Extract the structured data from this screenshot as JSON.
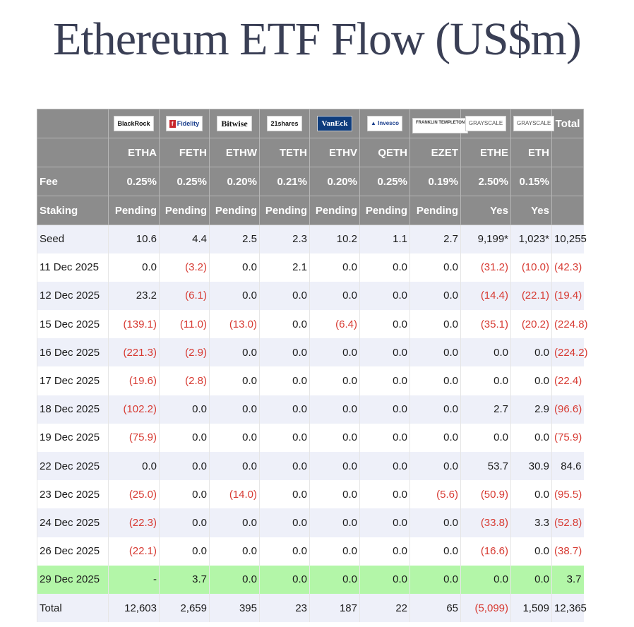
{
  "title": "Ethereum ETF Flow (US$m)",
  "issuers": [
    "BlackRock",
    "Fidelity",
    "Bitwise",
    "21shares",
    "VanEck",
    "Invesco",
    "FRANKLIN TEMPLETON",
    "GRAYSCALE",
    "GRAYSCALE"
  ],
  "total_header": "Total",
  "tickers": [
    "ETHA",
    "FETH",
    "ETHW",
    "TETH",
    "ETHV",
    "QETH",
    "EZET",
    "ETHE",
    "ETH"
  ],
  "fee_label": "Fee",
  "fees": [
    "0.25%",
    "0.25%",
    "0.20%",
    "0.21%",
    "0.20%",
    "0.25%",
    "0.19%",
    "2.50%",
    "0.15%"
  ],
  "staking_label": "Staking",
  "staking": [
    "Pending",
    "Pending",
    "Pending",
    "Pending",
    "Pending",
    "Pending",
    "Pending",
    "Yes",
    "Yes"
  ],
  "rows": [
    {
      "date": "Seed",
      "v": [
        "10.6",
        "4.4",
        "2.5",
        "2.3",
        "10.2",
        "1.1",
        "2.7",
        "9,199*",
        "1,023*",
        "10,255"
      ]
    },
    {
      "date": "11 Dec 2025",
      "v": [
        "0.0",
        "(3.2)",
        "0.0",
        "2.1",
        "0.0",
        "0.0",
        "0.0",
        "(31.2)",
        "(10.0)",
        "(42.3)"
      ]
    },
    {
      "date": "12 Dec 2025",
      "v": [
        "23.2",
        "(6.1)",
        "0.0",
        "0.0",
        "0.0",
        "0.0",
        "0.0",
        "(14.4)",
        "(22.1)",
        "(19.4)"
      ]
    },
    {
      "date": "15 Dec 2025",
      "v": [
        "(139.1)",
        "(11.0)",
        "(13.0)",
        "0.0",
        "(6.4)",
        "0.0",
        "0.0",
        "(35.1)",
        "(20.2)",
        "(224.8)"
      ]
    },
    {
      "date": "16 Dec 2025",
      "v": [
        "(221.3)",
        "(2.9)",
        "0.0",
        "0.0",
        "0.0",
        "0.0",
        "0.0",
        "0.0",
        "0.0",
        "(224.2)"
      ]
    },
    {
      "date": "17 Dec 2025",
      "v": [
        "(19.6)",
        "(2.8)",
        "0.0",
        "0.0",
        "0.0",
        "0.0",
        "0.0",
        "0.0",
        "0.0",
        "(22.4)"
      ]
    },
    {
      "date": "18 Dec 2025",
      "v": [
        "(102.2)",
        "0.0",
        "0.0",
        "0.0",
        "0.0",
        "0.0",
        "0.0",
        "2.7",
        "2.9",
        "(96.6)"
      ]
    },
    {
      "date": "19 Dec 2025",
      "v": [
        "(75.9)",
        "0.0",
        "0.0",
        "0.0",
        "0.0",
        "0.0",
        "0.0",
        "0.0",
        "0.0",
        "(75.9)"
      ]
    },
    {
      "date": "22 Dec 2025",
      "v": [
        "0.0",
        "0.0",
        "0.0",
        "0.0",
        "0.0",
        "0.0",
        "0.0",
        "53.7",
        "30.9",
        "84.6"
      ]
    },
    {
      "date": "23 Dec 2025",
      "v": [
        "(25.0)",
        "0.0",
        "(14.0)",
        "0.0",
        "0.0",
        "0.0",
        "(5.6)",
        "(50.9)",
        "0.0",
        "(95.5)"
      ]
    },
    {
      "date": "24 Dec 2025",
      "v": [
        "(22.3)",
        "0.0",
        "0.0",
        "0.0",
        "0.0",
        "0.0",
        "0.0",
        "(33.8)",
        "3.3",
        "(52.8)"
      ]
    },
    {
      "date": "26 Dec 2025",
      "v": [
        "(22.1)",
        "0.0",
        "0.0",
        "0.0",
        "0.0",
        "0.0",
        "0.0",
        "(16.6)",
        "0.0",
        "(38.7)"
      ]
    },
    {
      "date": "29 Dec 2025",
      "v": [
        "-",
        "3.7",
        "0.0",
        "0.0",
        "0.0",
        "0.0",
        "0.0",
        "0.0",
        "0.0",
        "3.7"
      ],
      "highlight": true
    },
    {
      "date": "Total",
      "v": [
        "12,603",
        "2,659",
        "395",
        "23",
        "187",
        "22",
        "65",
        "(5,099)",
        "1,509",
        "12,365"
      ],
      "total": true
    }
  ],
  "colors": {
    "header_bg": "#8c8c8c",
    "stripe": "#eef0f9",
    "highlight": "#b3f6a8",
    "negative": "#d73a32"
  }
}
